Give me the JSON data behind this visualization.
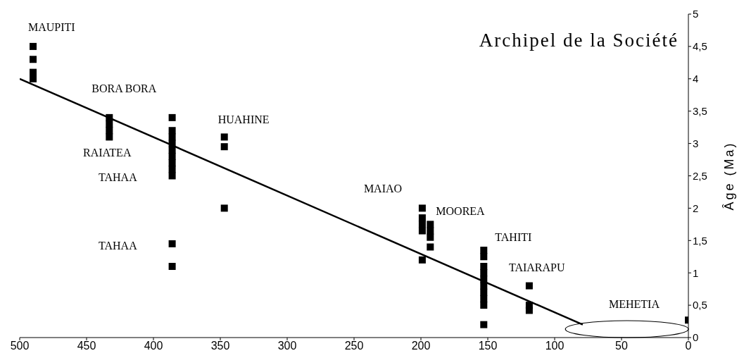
{
  "chart_data": {
    "type": "scatter",
    "title": "Archipel de la Société",
    "ylabel": "Âge (Ma)",
    "xlim": [
      500,
      0
    ],
    "xticks": [
      500,
      450,
      400,
      350,
      300,
      250,
      200,
      150,
      100,
      50,
      0
    ],
    "ylim": [
      0,
      5
    ],
    "yticks": [
      0,
      {
        "value": 0.5,
        "label": "0,5"
      },
      1,
      {
        "value": 1.5,
        "label": "1,5"
      },
      2,
      {
        "value": 2.5,
        "label": "2,5"
      },
      3,
      {
        "value": 3.5,
        "label": "3,5"
      },
      4,
      {
        "value": 4.5,
        "label": "4,5"
      },
      5
    ],
    "marker": "square",
    "grid": false,
    "legend": false,
    "series": [
      {
        "type": "scatter",
        "color": "#000000",
        "x": [
          490,
          490,
          490,
          490,
          433,
          433,
          433,
          433,
          386,
          386,
          386,
          386,
          386,
          386,
          386,
          386,
          386,
          386,
          386,
          347,
          347,
          347,
          199,
          199,
          199,
          199,
          199,
          193,
          193,
          193,
          193,
          153,
          153,
          153,
          153,
          153,
          153,
          153,
          153,
          153,
          153,
          119,
          119,
          119,
          0
        ],
        "values": [
          4.5,
          4.3,
          4.1,
          4.0,
          3.4,
          3.3,
          3.2,
          3.1,
          3.4,
          3.2,
          3.1,
          3.0,
          2.9,
          2.8,
          2.7,
          2.6,
          2.5,
          1.45,
          1.1,
          3.1,
          2.95,
          2.0,
          2.0,
          1.85,
          1.75,
          1.65,
          1.2,
          1.75,
          1.65,
          1.55,
          1.4,
          1.35,
          1.25,
          1.1,
          1.0,
          0.9,
          0.8,
          0.7,
          0.6,
          0.5,
          0.2,
          0.8,
          0.5,
          0.42,
          0.27
        ]
      },
      {
        "type": "line",
        "color": "#000000",
        "x": [
          500,
          79
        ],
        "values": [
          4.0,
          0.2
        ],
        "marker": "none"
      }
    ],
    "annotations": [
      {
        "text": "MAUPITI",
        "x": 490,
        "y": 4.5
      },
      {
        "text": "BORA BORA",
        "x": 433,
        "y": 3.4
      },
      "RAIATEA",
      "TAHAA",
      "TAHAA",
      {
        "text": "HUAHINE",
        "x": 347,
        "y": 3.1
      },
      {
        "text": "MAIAO",
        "x": 199,
        "y": 2.0
      },
      {
        "text": "MOOREA",
        "x": 193,
        "y": 1.75
      },
      {
        "text": "TAHITI",
        "x": 153,
        "y": 1.35
      },
      {
        "text": "TAIARAPU",
        "x": 119,
        "y": 0.8
      },
      {
        "text": "MEHETIA",
        "x": 0,
        "y": 0.27
      }
    ]
  }
}
